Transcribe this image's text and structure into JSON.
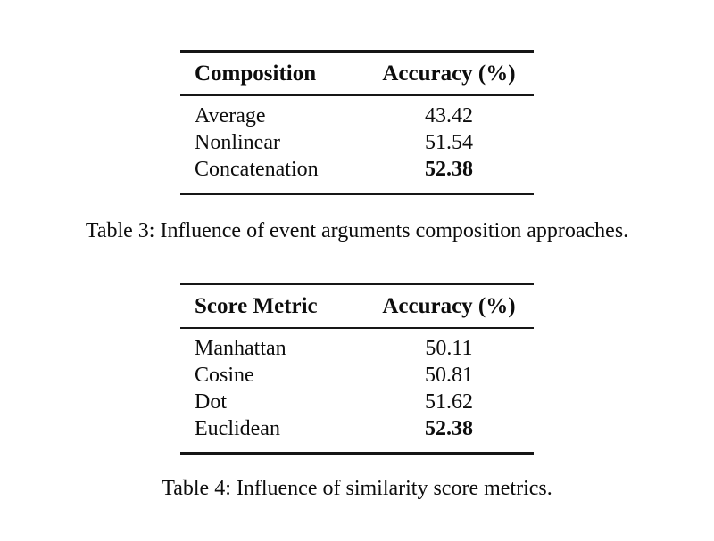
{
  "page": {
    "background_color": "#ffffff",
    "text_color": "#0d0d0d",
    "rule_color": "#161616"
  },
  "tables": [
    {
      "name": "composition-results",
      "columns": [
        "Composition",
        "Accuracy (%)"
      ],
      "rows": [
        {
          "label": "Average",
          "value": "43.42",
          "bold": false
        },
        {
          "label": "Nonlinear",
          "value": "51.54",
          "bold": false
        },
        {
          "label": "Concatenation",
          "value": "52.38",
          "bold": true
        }
      ],
      "caption": "Table 3: Influence of event arguments composition approaches."
    },
    {
      "name": "score-metric-results",
      "columns": [
        "Score Metric",
        "Accuracy (%)"
      ],
      "rows": [
        {
          "label": "Manhattan",
          "value": "50.11",
          "bold": false
        },
        {
          "label": "Cosine",
          "value": "50.81",
          "bold": false
        },
        {
          "label": "Dot",
          "value": "51.62",
          "bold": false
        },
        {
          "label": "Euclidean",
          "value": "52.38",
          "bold": true
        }
      ],
      "caption": "Table 4: Influence of similarity score metrics."
    }
  ]
}
